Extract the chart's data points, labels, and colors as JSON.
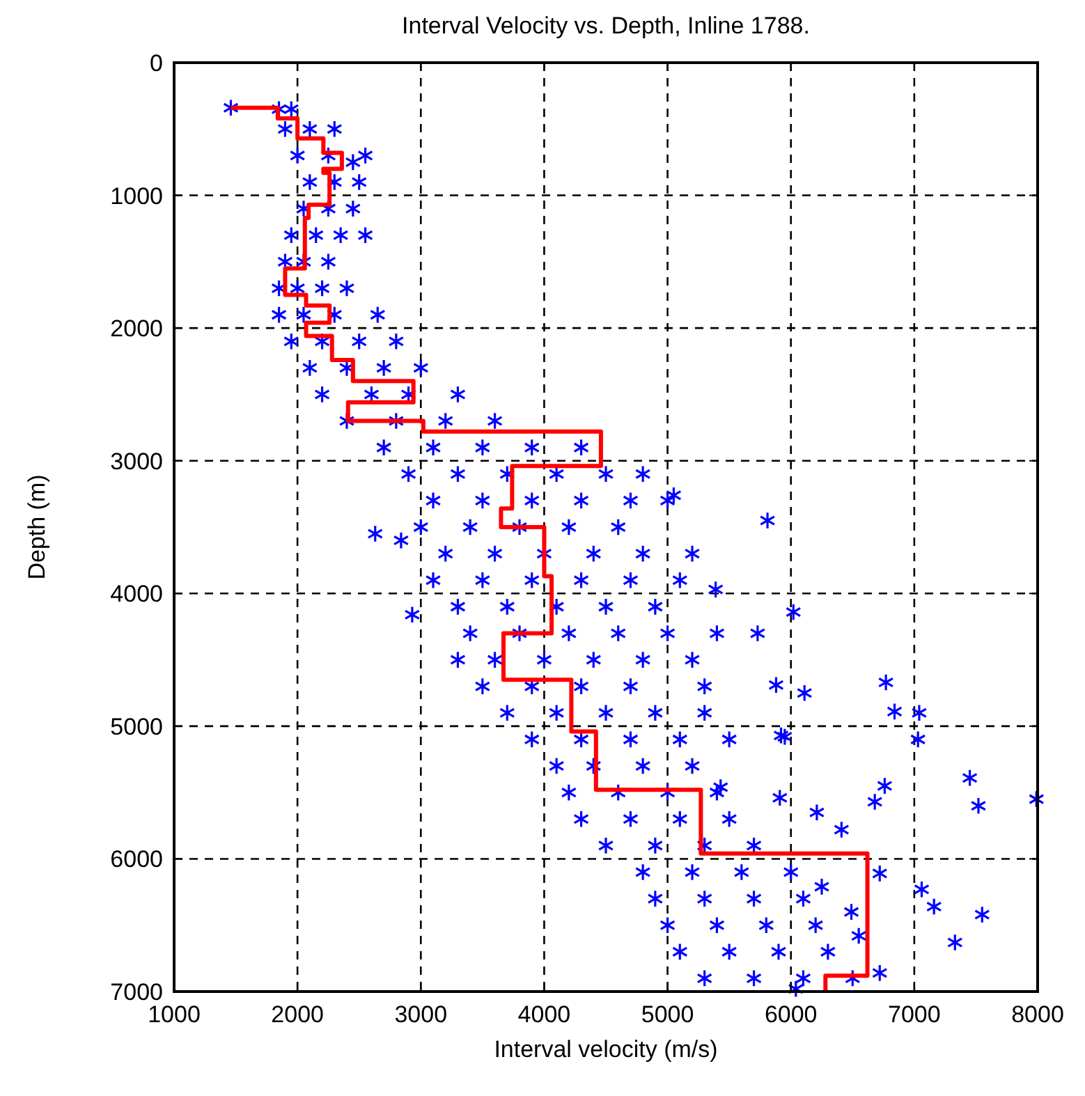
{
  "chart_data": {
    "type": "scatter",
    "title": "Interval Velocity vs. Depth, Inline 1788.",
    "xlabel": "Interval velocity (m/s)",
    "ylabel": "Depth (m)",
    "xlim": [
      1000,
      8000
    ],
    "xticks": [
      1000,
      2000,
      3000,
      4000,
      5000,
      6000,
      7000,
      8000
    ],
    "ylim": [
      7000,
      0
    ],
    "yticks": [
      0,
      1000,
      2000,
      3000,
      4000,
      5000,
      6000,
      7000
    ],
    "grid": true,
    "series": [
      {
        "color": "#0000ff",
        "marker": "cross",
        "x": [
          1460,
          1850,
          1950,
          1900,
          2100,
          2300,
          2000,
          2250,
          2550,
          2450,
          2100,
          2300,
          2500,
          2050,
          2250,
          2450,
          1950,
          2150,
          2350,
          2550,
          1900,
          2050,
          2250,
          1850,
          2000,
          2200,
          2400,
          1850,
          2050,
          2300,
          2650,
          1950,
          2200,
          2500,
          2800,
          2100,
          2400,
          2700,
          3000,
          2200,
          2600,
          2900,
          3300,
          2400,
          2800,
          3200,
          3600,
          2700,
          3100,
          3500,
          3900,
          4300,
          2900,
          3300,
          3700,
          4100,
          4500,
          4800,
          3100,
          3500,
          3900,
          4300,
          4700,
          5000,
          3000,
          3400,
          3800,
          4200,
          4600,
          3200,
          3600,
          4000,
          4400,
          4800,
          5200,
          3100,
          3500,
          3900,
          4300,
          4700,
          5100,
          3300,
          3700,
          4100,
          4500,
          4900,
          3400,
          3800,
          4200,
          4600,
          5000,
          5400,
          3300,
          3600,
          4000,
          4400,
          4800,
          5200,
          3500,
          3900,
          4300,
          4700,
          5300,
          3700,
          4100,
          4500,
          4900,
          5300,
          3900,
          4300,
          4700,
          5100,
          5500,
          4100,
          4400,
          4800,
          5200,
          4200,
          4600,
          5000,
          5400,
          4300,
          4700,
          5100,
          5500,
          4500,
          4900,
          5300,
          5700,
          4800,
          5200,
          5600,
          6000,
          4900,
          5300,
          5700,
          6100,
          5000,
          5400,
          5800,
          6200,
          5100,
          5500,
          5900,
          6300,
          5300,
          5700,
          6100,
          6500,
          7990,
          7450,
          7520,
          6770,
          6840,
          7040,
          7030,
          7330,
          7550,
          7160,
          7060,
          6720,
          6210,
          6410,
          5910,
          5950,
          6110,
          5880,
          6760,
          6680,
          6250,
          6550,
          6490,
          6720,
          6040,
          5430,
          5810,
          2630,
          2840,
          2930,
          5050,
          5390,
          5730,
          6020,
          5920
        ],
        "values": [
          340,
          350,
          350,
          500,
          500,
          500,
          700,
          700,
          700,
          750,
          900,
          900,
          900,
          1100,
          1100,
          1100,
          1300,
          1300,
          1300,
          1300,
          1500,
          1500,
          1500,
          1700,
          1700,
          1700,
          1700,
          1900,
          1900,
          1900,
          1900,
          2100,
          2100,
          2100,
          2100,
          2300,
          2300,
          2300,
          2300,
          2500,
          2500,
          2500,
          2500,
          2700,
          2700,
          2700,
          2700,
          2900,
          2900,
          2900,
          2900,
          2900,
          3100,
          3100,
          3100,
          3100,
          3100,
          3100,
          3300,
          3300,
          3300,
          3300,
          3300,
          3300,
          3500,
          3500,
          3500,
          3500,
          3500,
          3700,
          3700,
          3700,
          3700,
          3700,
          3700,
          3900,
          3900,
          3900,
          3900,
          3900,
          3900,
          4100,
          4100,
          4100,
          4100,
          4100,
          4300,
          4300,
          4300,
          4300,
          4300,
          4300,
          4500,
          4500,
          4500,
          4500,
          4500,
          4500,
          4700,
          4700,
          4700,
          4700,
          4700,
          4900,
          4900,
          4900,
          4900,
          4900,
          5100,
          5100,
          5100,
          5100,
          5100,
          5300,
          5300,
          5300,
          5300,
          5500,
          5500,
          5500,
          5500,
          5700,
          5700,
          5700,
          5700,
          5900,
          5900,
          5900,
          5900,
          6100,
          6100,
          6100,
          6100,
          6300,
          6300,
          6300,
          6300,
          6500,
          6500,
          6500,
          6500,
          6700,
          6700,
          6700,
          6700,
          6900,
          6900,
          6900,
          6900,
          5550,
          5390,
          5600,
          4670,
          4890,
          4900,
          5100,
          6630,
          6420,
          6360,
          6230,
          6110,
          5650,
          5780,
          5540,
          5080,
          4750,
          4690,
          5450,
          5570,
          6210,
          6580,
          6400,
          6860,
          6980,
          5460,
          3450,
          3550,
          3600,
          4160,
          3260,
          3970,
          4300,
          4140,
          5070
        ]
      },
      {
        "type": "line",
        "color": "#ff0000",
        "marker": "none",
        "line_style": "solid",
        "x": [
          1460,
          1840,
          1840,
          2000,
          2000,
          2210,
          2210,
          2360,
          2360,
          2210,
          2210,
          2260,
          2260,
          2090,
          2090,
          2060,
          2060,
          1900,
          1900,
          2070,
          2070,
          2260,
          2260,
          2070,
          2070,
          2280,
          2280,
          2450,
          2450,
          2940,
          2940,
          2410,
          2410,
          3020,
          3020,
          4460,
          4460,
          3740,
          3740,
          3650,
          3650,
          4000,
          4000,
          4060,
          4060,
          3670,
          3670,
          4220,
          4220,
          4420,
          4420,
          5270,
          5270,
          6620,
          6620,
          6280,
          6280
        ],
        "values": [
          340,
          340,
          420,
          420,
          570,
          570,
          680,
          680,
          800,
          800,
          830,
          830,
          1070,
          1070,
          1170,
          1170,
          1550,
          1550,
          1750,
          1750,
          1830,
          1830,
          1960,
          1960,
          2060,
          2060,
          2240,
          2240,
          2400,
          2400,
          2560,
          2560,
          2700,
          2700,
          2780,
          2780,
          3040,
          3040,
          3360,
          3360,
          3500,
          3500,
          3870,
          3870,
          4300,
          4300,
          4650,
          4650,
          5040,
          5040,
          5480,
          5480,
          5960,
          5960,
          6880,
          6880,
          7000
        ]
      }
    ]
  }
}
